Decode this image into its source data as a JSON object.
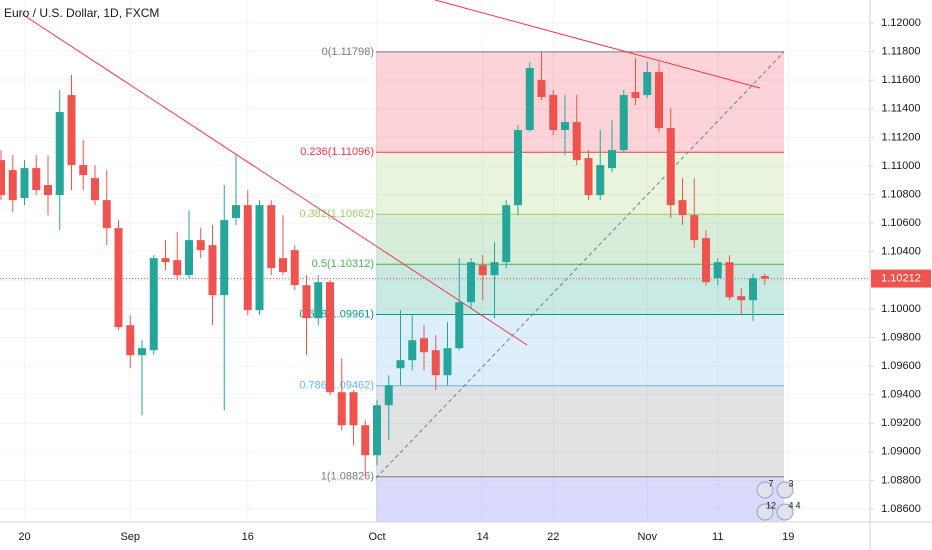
{
  "chart_data": {
    "type": "candlestick",
    "title": "Euro / U.S. Dollar, 1D, FXCM",
    "categories": [
      null,
      null,
      "20",
      null,
      null,
      null,
      null,
      null,
      null,
      null,
      null,
      "Sep",
      null,
      null,
      null,
      null,
      null,
      null,
      null,
      null,
      null,
      "16",
      null,
      null,
      null,
      null,
      null,
      null,
      null,
      null,
      null,
      null,
      "Oct",
      null,
      null,
      null,
      null,
      null,
      null,
      null,
      null,
      "14",
      null,
      null,
      null,
      null,
      null,
      "22",
      null,
      null,
      null,
      null,
      null,
      null,
      null,
      "Nov",
      null,
      null,
      null,
      null,
      null,
      "11",
      null,
      null,
      null,
      null,
      null,
      "19"
    ],
    "open": [
      1.11041,
      1.10971,
      1.10775,
      1.10985,
      1.10866,
      1.10796,
      1.11496,
      1.11006,
      1.10915,
      1.10761,
      1.10565,
      1.09886,
      1.09676,
      1.09711,
      1.10355,
      1.10341,
      1.10236,
      1.10481,
      1.10446,
      1.10096,
      1.10635,
      1.10726,
      1.09991,
      1.10726,
      1.10355,
      1.10411,
      1.10166,
      1.09935,
      1.10187,
      1.09417,
      1.09417,
      1.09186,
      1.08976,
      1.09326,
      1.09585,
      1.09641,
      1.09795,
      1.09711,
      1.09536,
      1.09725,
      1.10047,
      1.10306,
      1.10236,
      1.10327,
      1.10726,
      1.11251,
      1.11601,
      1.11496,
      1.11251,
      1.11307,
      1.11055,
      1.10796,
      1.10985,
      1.11111,
      1.11517,
      1.11496,
      1.11657,
      1.11265,
      1.10761,
      1.10656,
      1.10495,
      1.10215,
      1.10327,
      1.10089,
      1.10061,
      1.1023,
      null,
      null
    ],
    "high": [
      1.11111,
      1.11076,
      1.11041,
      1.11076,
      1.11076,
      1.11531,
      1.11636,
      1.11181,
      1.11006,
      1.10971,
      1.10621,
      1.09956,
      1.09781,
      1.10376,
      1.10481,
      1.10537,
      1.10691,
      1.10565,
      1.10586,
      1.10866,
      1.11076,
      1.10831,
      1.10761,
      1.10761,
      1.10656,
      1.10446,
      1.10236,
      1.10236,
      1.10201,
      1.09655,
      1.09431,
      1.09221,
      1.09361,
      1.09536,
      1.09991,
      1.09956,
      1.09886,
      1.09816,
      1.09907,
      1.10355,
      1.10355,
      1.10376,
      1.10467,
      1.10761,
      1.11286,
      1.11727,
      1.11798,
      1.11531,
      1.11496,
      1.11496,
      1.11111,
      1.11251,
      1.11321,
      1.11531,
      1.11755,
      1.11727,
      1.11727,
      1.11405,
      1.10915,
      1.10915,
      1.10551,
      1.10355,
      1.10376,
      1.10145,
      1.10246,
      1.10246,
      null,
      null
    ],
    "low": [
      1.10761,
      1.10677,
      1.10726,
      1.10796,
      1.10656,
      1.10551,
      1.10831,
      1.10831,
      1.10726,
      1.10446,
      1.09851,
      1.09585,
      1.09256,
      1.09676,
      1.10271,
      1.10201,
      1.10215,
      1.10355,
      1.09886,
      1.09291,
      1.10586,
      1.09956,
      1.09956,
      1.10236,
      1.10236,
      1.10131,
      1.09676,
      1.09886,
      1.09396,
      1.09151,
      1.09046,
      1.08826,
      1.08906,
      1.09081,
      1.09466,
      1.09571,
      1.09571,
      1.09431,
      1.09466,
      1.09711,
      1.10005,
      1.10061,
      1.09935,
      1.10285,
      1.10656,
      1.11237,
      1.11461,
      1.11216,
      1.11076,
      1.11006,
      1.10761,
      1.10761,
      1.10957,
      1.1109,
      1.11426,
      1.11475,
      1.11237,
      1.10635,
      1.10586,
      1.10425,
      1.10166,
      1.10166,
      1.10061,
      1.09956,
      1.09914,
      1.10166,
      null,
      null
    ],
    "close": [
      1.10796,
      1.10761,
      1.10985,
      1.10831,
      1.10796,
      1.11377,
      1.11006,
      1.10936,
      1.10761,
      1.10565,
      1.09872,
      1.09676,
      1.09725,
      1.10355,
      1.10327,
      1.10236,
      1.10481,
      1.10411,
      1.10096,
      1.10621,
      1.10726,
      1.09991,
      1.10726,
      1.10285,
      1.10257,
      1.10166,
      1.09935,
      1.10187,
      1.09417,
      1.09186,
      1.09186,
      1.08976,
      1.09326,
      1.09466,
      1.09641,
      1.09781,
      1.09697,
      1.09536,
      1.09725,
      1.10047,
      1.10327,
      1.10236,
      1.10327,
      1.10726,
      1.11251,
      1.11685,
      1.11482,
      1.11251,
      1.11307,
      1.11041,
      1.10796,
      1.11006,
      1.11111,
      1.11496,
      1.11475,
      1.11657,
      1.11265,
      1.10726,
      1.10656,
      1.10481,
      1.10187,
      1.10327,
      1.10082,
      1.10061,
      1.10215,
      1.10212,
      null,
      null
    ],
    "up_color": "#26a69a",
    "down_color": "#ef5350",
    "ylim": [
      1.08509,
      1.12161
    ],
    "yticks": [
      {
        "value": 1.12,
        "label": "1.12000"
      },
      {
        "value": 1.118,
        "label": "1.11800"
      },
      {
        "value": 1.116,
        "label": "1.11600"
      },
      {
        "value": 1.114,
        "label": "1.11400"
      },
      {
        "value": 1.112,
        "label": "1.11200"
      },
      {
        "value": 1.11,
        "label": "1.11000"
      },
      {
        "value": 1.108,
        "label": "1.10800"
      },
      {
        "value": 1.106,
        "label": "1.10600"
      },
      {
        "value": 1.104,
        "label": "1.10400"
      },
      {
        "value": 1.102,
        "label": "1.10200"
      },
      {
        "value": 1.1,
        "label": "1.10000"
      },
      {
        "value": 1.098,
        "label": "1.09800"
      },
      {
        "value": 1.096,
        "label": "1.09600"
      },
      {
        "value": 1.094,
        "label": "1.09400"
      },
      {
        "value": 1.092,
        "label": "1.09200"
      },
      {
        "value": 1.09,
        "label": "1.09000"
      },
      {
        "value": 1.088,
        "label": "1.08800"
      },
      {
        "value": 1.086,
        "label": "1.08600"
      }
    ],
    "grid": true,
    "last_price": {
      "value": 1.10212,
      "label": "1.10212"
    },
    "fib_levels": [
      {
        "label": "0(1.11798)",
        "value": 1.11798,
        "color": "#787b86"
      },
      {
        "label": "0.236(1.11096)",
        "value": 1.11096,
        "color": "#f23645"
      },
      {
        "label": "0.382(1.10662)",
        "value": 1.10662,
        "color": "#9ccc65"
      },
      {
        "label": "0.5(1.10312)",
        "value": 1.10312,
        "color": "#4caf50"
      },
      {
        "label": "0.618(1.09961)",
        "value": 1.09961,
        "color": "#089981"
      },
      {
        "label": "0.786(1.09462)",
        "value": 1.09462,
        "color": "#64b5f6"
      },
      {
        "label": "1(1.08826)",
        "value": 1.08826,
        "color": "#787b86"
      }
    ],
    "events": [
      "7",
      "3",
      "12",
      "4",
      "4"
    ]
  }
}
